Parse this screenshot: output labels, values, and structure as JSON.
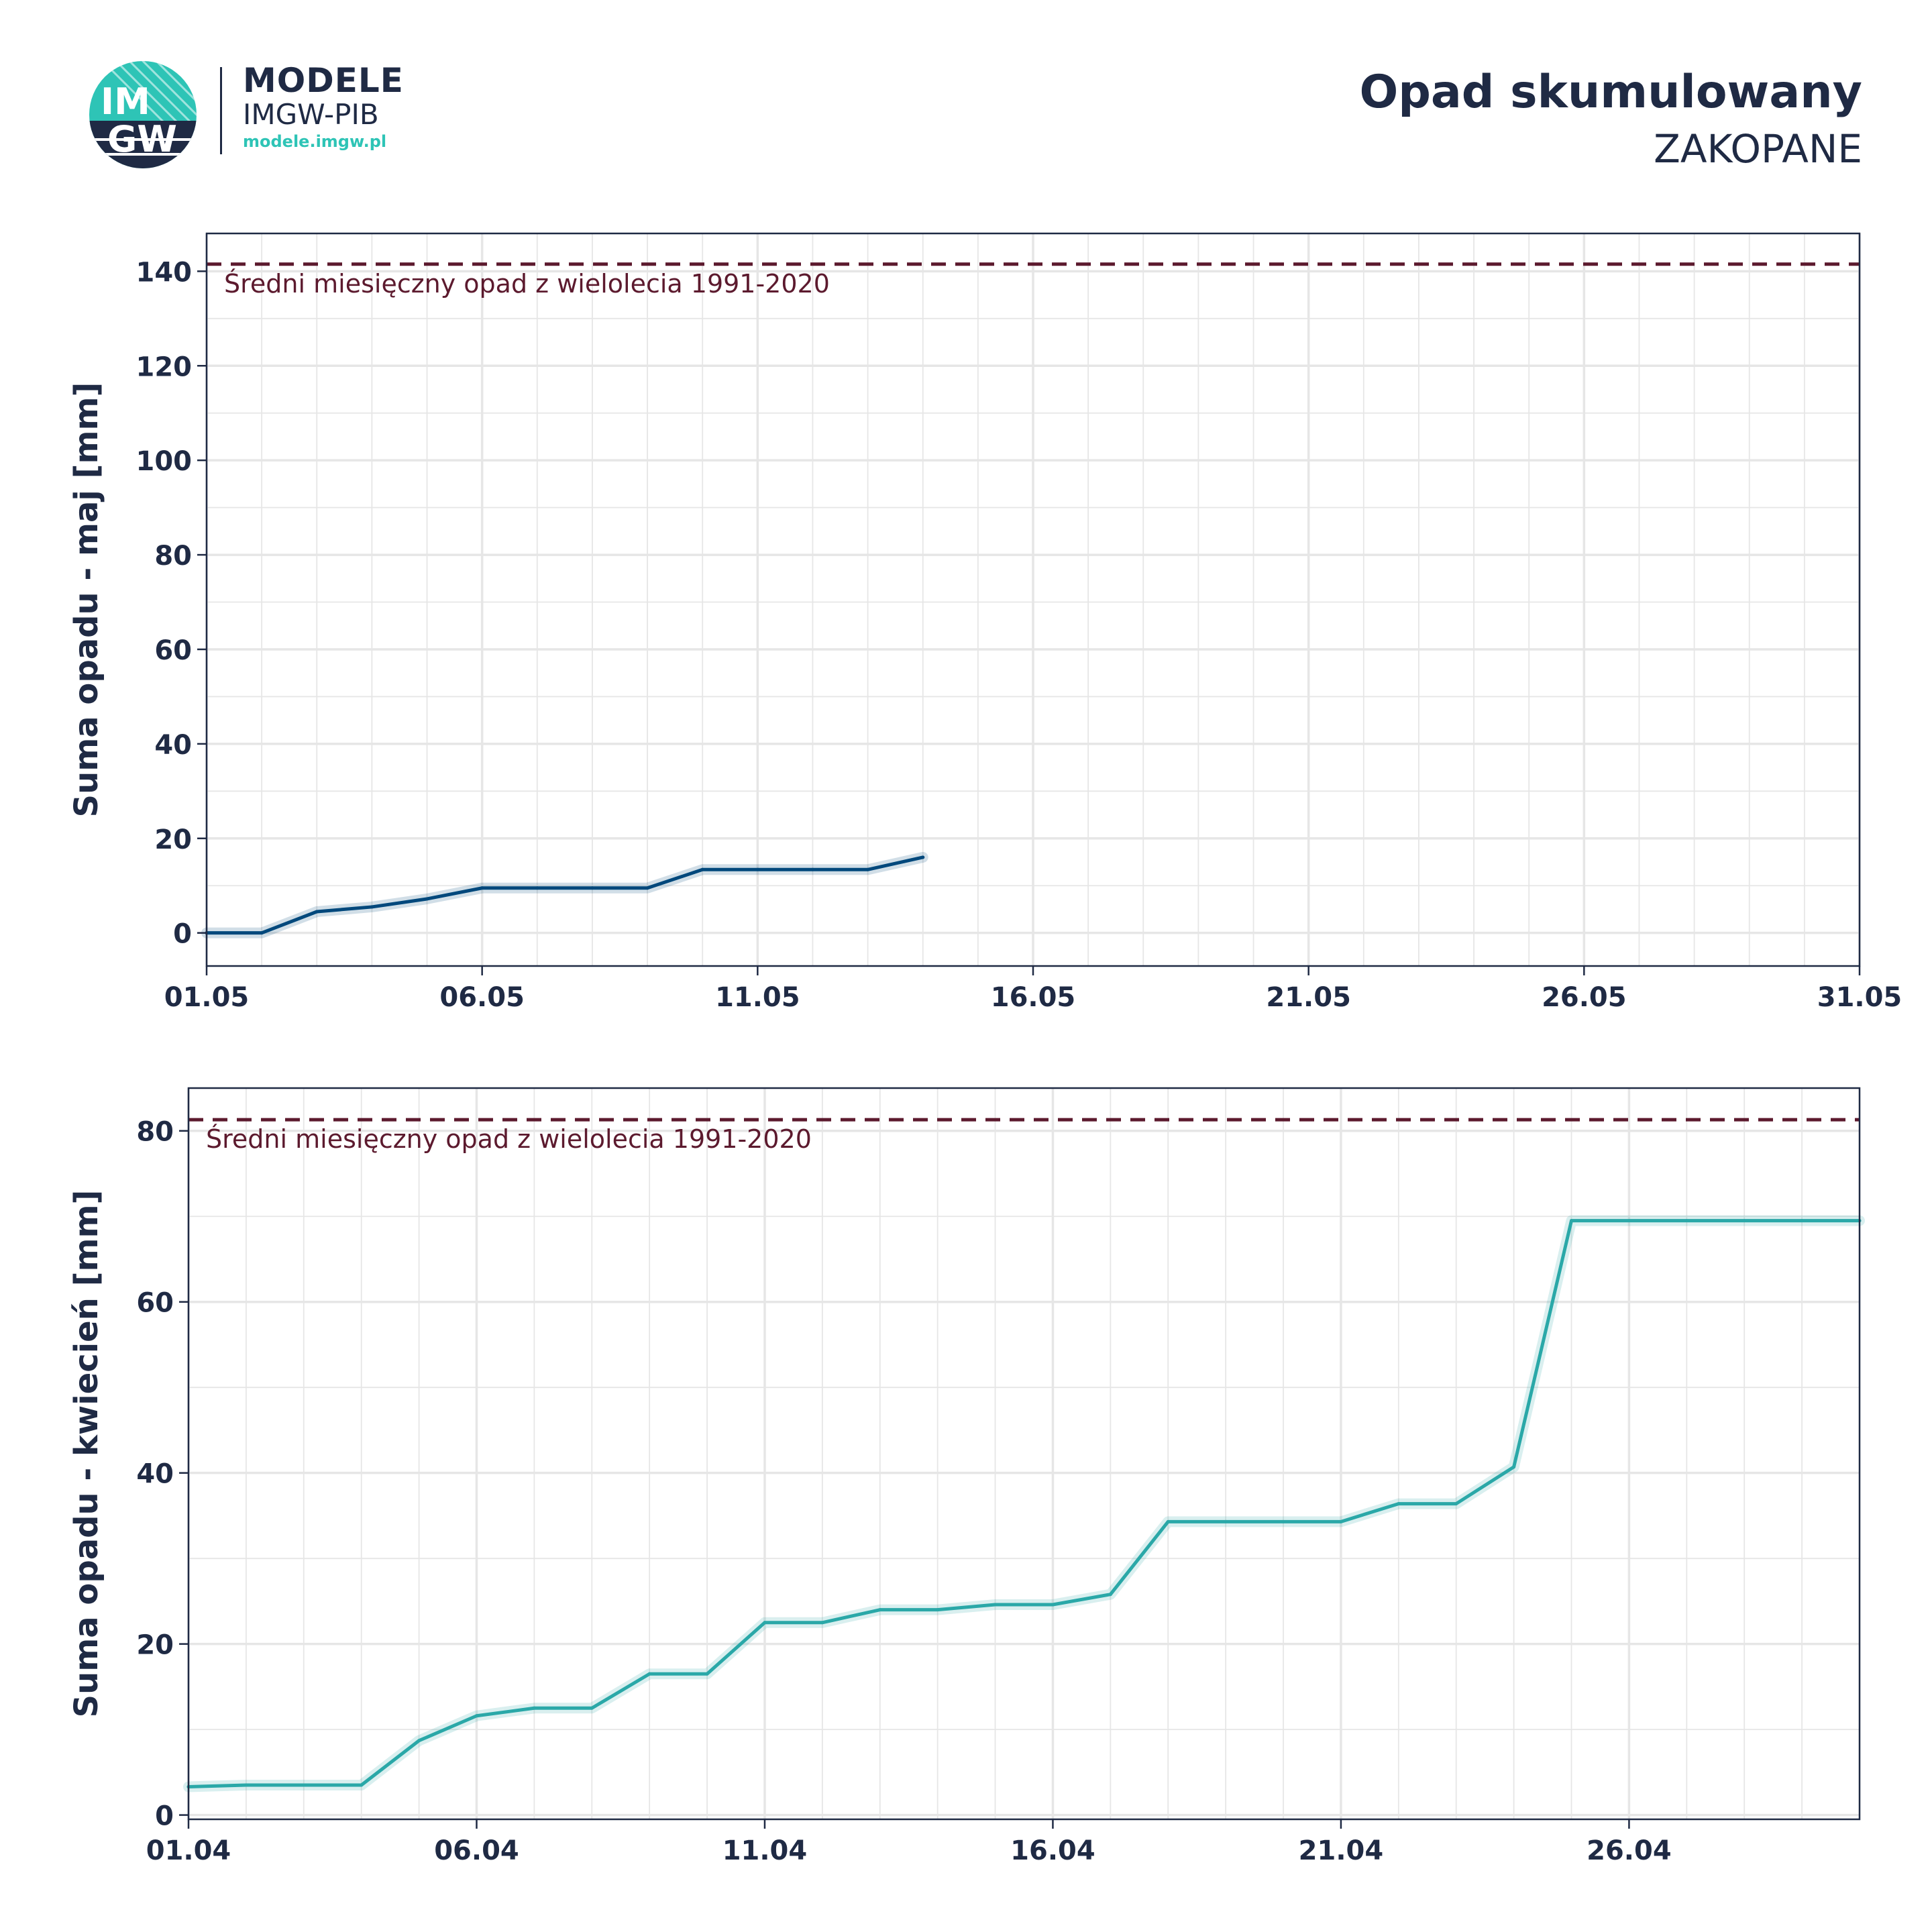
{
  "header": {
    "brand_line1": "MODELE",
    "brand_line2": "IMGW-PIB",
    "brand_line3": "modele.imgw.pl",
    "logo_text_top": "IM",
    "logo_text_bottom": "GW",
    "title": "Opad skumulowany",
    "subtitle": "ZAKOPANE"
  },
  "colors": {
    "text": "#1f2a44",
    "may_series": "#00487c",
    "april_series": "#2aa8a8",
    "reference_line": "#5c1a2e",
    "grid": "#e6e6e6",
    "logo_teal": "#2ec4b6",
    "logo_navy": "#1f2a44"
  },
  "chart_data": [
    {
      "type": "line",
      "ylabel": "Suma opadu - maj  [mm]",
      "xlabel": "",
      "x_tick_labels": [
        "01.05",
        "06.05",
        "11.05",
        "16.05",
        "21.05",
        "26.05",
        "31.05"
      ],
      "xlim_days": [
        1,
        31
      ],
      "ylim": [
        -7,
        148
      ],
      "y_ticks": [
        0,
        20,
        40,
        60,
        80,
        100,
        120,
        140
      ],
      "grid": true,
      "series": [
        {
          "x": [
            "01.05",
            "02.05",
            "03.05",
            "04.05",
            "05.05",
            "06.05",
            "07.05",
            "08.05",
            "09.05",
            "10.05",
            "11.05",
            "12.05",
            "13.05",
            "14.05"
          ],
          "values": [
            0,
            0,
            4.5,
            5.5,
            7.2,
            9.5,
            9.5,
            9.5,
            9.5,
            13.4,
            13.4,
            13.4,
            13.4,
            16
          ]
        }
      ],
      "reference_line": {
        "value": 141.5,
        "label": "Średni miesięczny opad z wielolecia 1991-2020"
      }
    },
    {
      "type": "line",
      "ylabel": "Suma opadu - kwiecień  [mm]",
      "xlabel": "",
      "x_tick_labels": [
        "01.04",
        "06.04",
        "11.04",
        "16.04",
        "21.04",
        "26.04"
      ],
      "xlim_days": [
        1,
        30
      ],
      "ylim": [
        -0.5,
        85
      ],
      "y_ticks": [
        0,
        20,
        40,
        60,
        80
      ],
      "grid": true,
      "series": [
        {
          "x": [
            "01.04",
            "02.04",
            "03.04",
            "04.04",
            "05.04",
            "06.04",
            "07.04",
            "08.04",
            "09.04",
            "10.04",
            "11.04",
            "12.04",
            "13.04",
            "14.04",
            "15.04",
            "16.04",
            "17.04",
            "18.04",
            "19.04",
            "20.04",
            "21.04",
            "22.04",
            "23.04",
            "24.04",
            "25.04",
            "26.04",
            "27.04",
            "28.04",
            "29.04",
            "30.04"
          ],
          "values": [
            3.3,
            3.5,
            3.5,
            3.5,
            8.7,
            11.6,
            12.5,
            12.5,
            16.5,
            16.5,
            22.5,
            22.5,
            24,
            24,
            24.6,
            24.6,
            25.8,
            34.3,
            34.3,
            34.3,
            34.3,
            36.4,
            36.4,
            40.7,
            69.5,
            69.5,
            69.5,
            69.5,
            69.5,
            69.5
          ]
        }
      ],
      "reference_line": {
        "value": 81.3,
        "label": "Średni miesięczny opad z wielolecia 1991-2020"
      }
    }
  ]
}
